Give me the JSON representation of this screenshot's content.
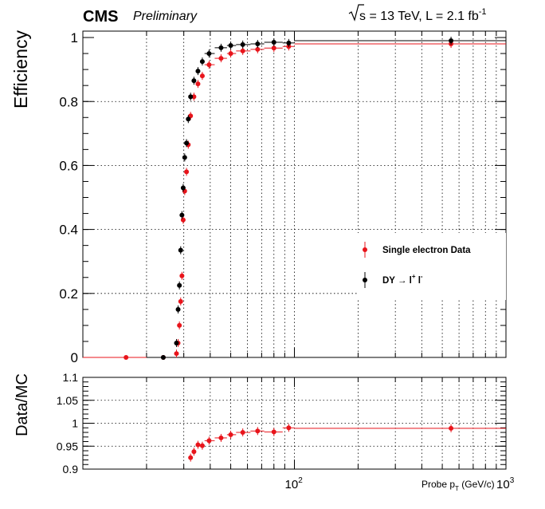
{
  "header": {
    "experiment": "CMS",
    "status": "Preliminary",
    "energy_sqrt": "s",
    "energy_rest": " = 13 TeV, L = 2.1 fb",
    "lumi_exp": "-1"
  },
  "legend": {
    "data_label": "Single electron Data",
    "mc_prefix": "DY ",
    "mc_arrow": "→",
    "mc_l1": " l",
    "mc_plus": "+",
    "mc_l2": " l",
    "mc_minus": "-"
  },
  "axes": {
    "top_ylabel": "Efficiency",
    "bottom_ylabel": "Data/MC",
    "xlabel_main": "Probe p",
    "xlabel_sub": "T",
    "xlabel_unit": " (GeV/c)",
    "top_yticks": [
      "0",
      "0.2",
      "0.4",
      "0.6",
      "0.8",
      "1"
    ],
    "bottom_yticks": [
      "0.9",
      "0.95",
      "1",
      "1.05",
      "1.1"
    ],
    "x_tick_labels": [
      {
        "base": "10",
        "exp": "2",
        "value": 100
      },
      {
        "base": "10",
        "exp": "3",
        "value": 1000
      }
    ]
  },
  "colors": {
    "data": "#e8141b",
    "mc": "#000000",
    "grid": "#000000"
  },
  "chart_data": [
    {
      "type": "scatter",
      "title": "",
      "xlabel": "Probe p_T (GeV/c)",
      "ylabel": "Efficiency",
      "xscale": "log",
      "xlim": [
        10,
        1000
      ],
      "ylim": [
        0,
        1.02
      ],
      "grid": true,
      "legend_position": "right-middle",
      "series": [
        {
          "name": "Single electron Data",
          "color": "#e8141b",
          "points": [
            {
              "x": 16,
              "y": 0.0,
              "xlo": 10,
              "xhi": 20
            },
            {
              "x": 24,
              "y": 0.0,
              "xlo": 20,
              "xhi": 27
            },
            {
              "x": 27.7,
              "y": 0.012,
              "xlo": 27.5,
              "xhi": 28
            },
            {
              "x": 28.2,
              "y": 0.045,
              "xlo": 28,
              "xhi": 28.4
            },
            {
              "x": 28.6,
              "y": 0.1,
              "xlo": 28.4,
              "xhi": 28.8
            },
            {
              "x": 29.0,
              "y": 0.175,
              "xlo": 28.8,
              "xhi": 29.2
            },
            {
              "x": 29.4,
              "y": 0.255,
              "xlo": 29.2,
              "xhi": 29.6
            },
            {
              "x": 29.8,
              "y": 0.43,
              "xlo": 29.6,
              "xhi": 30.0
            },
            {
              "x": 30.3,
              "y": 0.52,
              "xlo": 30.0,
              "xhi": 30.6
            },
            {
              "x": 30.9,
              "y": 0.58,
              "xlo": 30.6,
              "xhi": 31.2
            },
            {
              "x": 31.5,
              "y": 0.665,
              "xlo": 31.2,
              "xhi": 31.8
            },
            {
              "x": 32.3,
              "y": 0.755,
              "xlo": 31.8,
              "xhi": 32.8
            },
            {
              "x": 33.5,
              "y": 0.815,
              "xlo": 32.8,
              "xhi": 34.2
            },
            {
              "x": 35.0,
              "y": 0.855,
              "xlo": 34.2,
              "xhi": 35.8
            },
            {
              "x": 36.7,
              "y": 0.88,
              "xlo": 35.8,
              "xhi": 37.6
            },
            {
              "x": 39.5,
              "y": 0.915,
              "xlo": 37.6,
              "xhi": 42
            },
            {
              "x": 45,
              "y": 0.935,
              "xlo": 42,
              "xhi": 48
            },
            {
              "x": 50,
              "y": 0.95,
              "xlo": 48,
              "xhi": 53
            },
            {
              "x": 57,
              "y": 0.958,
              "xlo": 53,
              "xhi": 62
            },
            {
              "x": 67,
              "y": 0.963,
              "xlo": 62,
              "xhi": 72
            },
            {
              "x": 80,
              "y": 0.967,
              "xlo": 72,
              "xhi": 88
            },
            {
              "x": 94,
              "y": 0.972,
              "xlo": 88,
              "xhi": 100
            },
            {
              "x": 550,
              "y": 0.98,
              "xlo": 100,
              "xhi": 1000
            }
          ]
        },
        {
          "name": "DY → l+ l-",
          "color": "#000000",
          "points": [
            {
              "x": 24,
              "y": 0.0,
              "xlo": 20,
              "xhi": 27
            },
            {
              "x": 27.7,
              "y": 0.045,
              "xlo": 27.5,
              "xhi": 28
            },
            {
              "x": 28.2,
              "y": 0.15,
              "xlo": 28,
              "xhi": 28.4
            },
            {
              "x": 28.6,
              "y": 0.225,
              "xlo": 28.4,
              "xhi": 28.8
            },
            {
              "x": 29.0,
              "y": 0.335,
              "xlo": 28.8,
              "xhi": 29.2
            },
            {
              "x": 29.4,
              "y": 0.445,
              "xlo": 29.2,
              "xhi": 29.6
            },
            {
              "x": 29.8,
              "y": 0.53,
              "xlo": 29.6,
              "xhi": 30.0
            },
            {
              "x": 30.3,
              "y": 0.625,
              "xlo": 30.0,
              "xhi": 30.6
            },
            {
              "x": 30.9,
              "y": 0.67,
              "xlo": 30.6,
              "xhi": 31.2
            },
            {
              "x": 31.5,
              "y": 0.745,
              "xlo": 31.2,
              "xhi": 31.8
            },
            {
              "x": 32.3,
              "y": 0.815,
              "xlo": 31.8,
              "xhi": 32.8
            },
            {
              "x": 33.5,
              "y": 0.865,
              "xlo": 32.8,
              "xhi": 34.2
            },
            {
              "x": 35.0,
              "y": 0.895,
              "xlo": 34.2,
              "xhi": 35.8
            },
            {
              "x": 36.7,
              "y": 0.925,
              "xlo": 35.8,
              "xhi": 37.6
            },
            {
              "x": 39.5,
              "y": 0.95,
              "xlo": 37.6,
              "xhi": 42
            },
            {
              "x": 45,
              "y": 0.968,
              "xlo": 42,
              "xhi": 48
            },
            {
              "x": 50,
              "y": 0.975,
              "xlo": 48,
              "xhi": 53
            },
            {
              "x": 57,
              "y": 0.978,
              "xlo": 53,
              "xhi": 62
            },
            {
              "x": 67,
              "y": 0.98,
              "xlo": 62,
              "xhi": 72
            },
            {
              "x": 80,
              "y": 0.985,
              "xlo": 72,
              "xhi": 88
            },
            {
              "x": 94,
              "y": 0.983,
              "xlo": 88,
              "xhi": 100
            },
            {
              "x": 550,
              "y": 0.99,
              "xlo": 100,
              "xhi": 1000
            }
          ]
        }
      ]
    },
    {
      "type": "scatter",
      "title": "",
      "xlabel": "Probe p_T (GeV/c)",
      "ylabel": "Data/MC",
      "xscale": "log",
      "xlim": [
        10,
        1000
      ],
      "ylim": [
        0.9,
        1.1
      ],
      "grid": true,
      "series": [
        {
          "name": "",
          "color": "#e8141b",
          "points": [
            {
              "x": 32.3,
              "y": 0.925,
              "xlo": 31.8,
              "xhi": 32.8
            },
            {
              "x": 33.5,
              "y": 0.938,
              "xlo": 32.8,
              "xhi": 34.2
            },
            {
              "x": 35.0,
              "y": 0.953,
              "xlo": 34.2,
              "xhi": 35.8
            },
            {
              "x": 36.7,
              "y": 0.951,
              "xlo": 35.8,
              "xhi": 37.6
            },
            {
              "x": 39.5,
              "y": 0.962,
              "xlo": 37.6,
              "xhi": 42
            },
            {
              "x": 45,
              "y": 0.968,
              "xlo": 42,
              "xhi": 48
            },
            {
              "x": 50,
              "y": 0.975,
              "xlo": 48,
              "xhi": 53
            },
            {
              "x": 57,
              "y": 0.98,
              "xlo": 53,
              "xhi": 62
            },
            {
              "x": 67,
              "y": 0.983,
              "xlo": 62,
              "xhi": 72
            },
            {
              "x": 80,
              "y": 0.981,
              "xlo": 72,
              "xhi": 88
            },
            {
              "x": 94,
              "y": 0.99,
              "xlo": 88,
              "xhi": 100
            },
            {
              "x": 550,
              "y": 0.989,
              "xlo": 100,
              "xhi": 1000
            }
          ]
        }
      ]
    }
  ]
}
